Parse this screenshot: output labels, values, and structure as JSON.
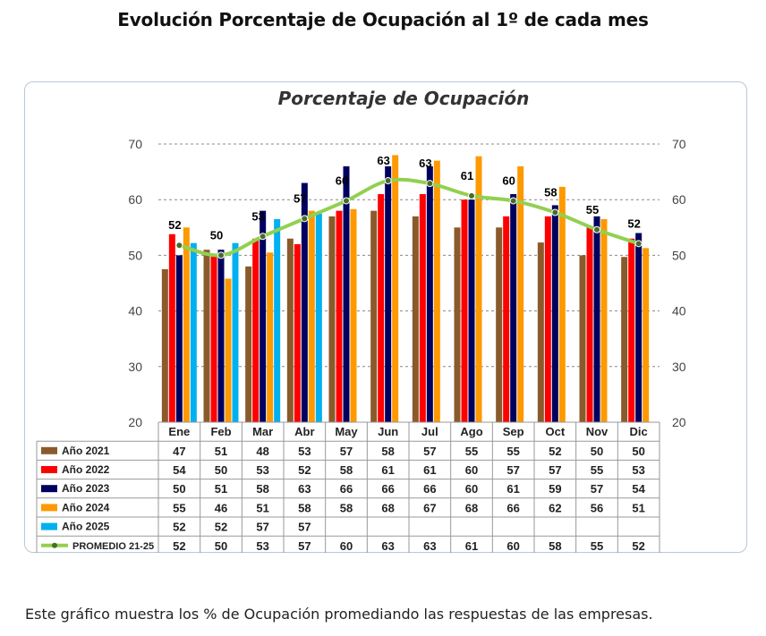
{
  "page": {
    "title": "Evolución Porcentaje de Ocupación al 1º de cada mes",
    "caption": "Este gráfico muestra los % de Ocupación promediando las respuestas de las empresas."
  },
  "chart_data": {
    "type": "bar",
    "title": "Porcentaje de Ocupación",
    "categories": [
      "Ene",
      "Feb",
      "Mar",
      "Abr",
      "May",
      "Jun",
      "Jul",
      "Ago",
      "Sep",
      "Oct",
      "Nov",
      "Dic"
    ],
    "ylim": [
      20,
      70
    ],
    "yticks": [
      "20",
      "30",
      "40",
      "50",
      "60",
      "70"
    ],
    "grid": true,
    "legend_placement": "data-table-left",
    "series": [
      {
        "name": "Año 2021",
        "color": "#8b5a2b",
        "values": [
          47.5,
          51,
          48,
          53,
          57,
          58,
          57,
          55,
          55,
          52.3,
          50,
          49.7
        ],
        "table": [
          "47",
          "51",
          "48",
          "53",
          "57",
          "58",
          "57",
          "55",
          "55",
          "52",
          "50",
          "50"
        ]
      },
      {
        "name": "Año 2022",
        "color": "#ff0000",
        "values": [
          53.8,
          50,
          53,
          52,
          58,
          61,
          61,
          60,
          57,
          57,
          55,
          53
        ],
        "table": [
          "54",
          "50",
          "53",
          "52",
          "58",
          "61",
          "61",
          "60",
          "57",
          "57",
          "55",
          "53"
        ]
      },
      {
        "name": "Año 2023",
        "color": "#00005e",
        "values": [
          50,
          51,
          58,
          63,
          66,
          66,
          66,
          60,
          61,
          59,
          57,
          54
        ],
        "table": [
          "50",
          "51",
          "58",
          "63",
          "66",
          "66",
          "66",
          "60",
          "61",
          "59",
          "57",
          "54"
        ]
      },
      {
        "name": "Año 2024",
        "color": "#ff9900",
        "values": [
          55,
          45.8,
          50.5,
          58,
          58.3,
          68,
          67,
          67.8,
          66,
          62.3,
          56.5,
          51.3
        ],
        "table": [
          "55",
          "46",
          "51",
          "58",
          "58",
          "68",
          "67",
          "68",
          "66",
          "62",
          "56",
          "51"
        ]
      },
      {
        "name": "Año 2025",
        "color": "#00b0f0",
        "values": [
          52.2,
          52.2,
          56.5,
          57.5,
          null,
          null,
          null,
          null,
          null,
          null,
          null,
          null
        ],
        "table": [
          "52",
          "52",
          "57",
          "57",
          "",
          "",
          "",
          "",
          "",
          "",
          "",
          ""
        ]
      }
    ],
    "average": {
      "name": "PROMEDIO 21-25",
      "color": "#92d050",
      "values": [
        51.8,
        50,
        53.4,
        56.6,
        59.8,
        63.4,
        62.9,
        60.7,
        59.8,
        57.7,
        54.6,
        52.1
      ],
      "labels": [
        "52",
        "50",
        "53",
        "57",
        "60",
        "63",
        "63",
        "61",
        "60",
        "58",
        "55",
        "52"
      ],
      "table": [
        "52",
        "50",
        "53",
        "57",
        "60",
        "63",
        "63",
        "61",
        "60",
        "58",
        "55",
        "52"
      ]
    }
  }
}
